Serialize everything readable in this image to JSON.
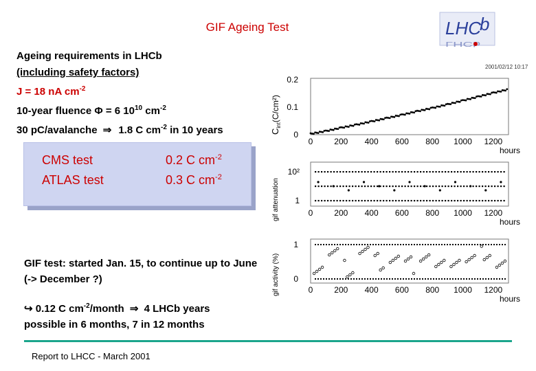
{
  "title": "GIF Ageing Test",
  "logo_text": "LHCb",
  "timestamp": "2001/02/12  10:17",
  "requirements": {
    "heading": "Ageing requirements in LHCb",
    "safety": "(including safety factors)",
    "current_lhs": "J = 18 nA cm",
    "current_exp": "-2",
    "fluence_lhs": "10-year fluence Φ = 6 10",
    "fluence_exp": "10",
    "fluence_unit": " cm",
    "fluence_unit_exp": "-2",
    "charge_a": "30 pC/avalanche",
    "charge_arrow": "⇒",
    "charge_b": "1.8 C cm",
    "charge_exp": "-2",
    "charge_c": " in 10 years"
  },
  "comparison": {
    "rows": [
      {
        "label": "CMS test",
        "value": "0.2 C cm",
        "exp": "-2"
      },
      {
        "label": "ATLAS test",
        "value": "0.3 C cm",
        "exp": "-2"
      }
    ]
  },
  "gif_status": "GIF test: started Jan. 15, to continue up to June (-> December ?)",
  "result": {
    "arrow": "↪",
    "rate": " 0.12 C cm",
    "rate_exp": "-2",
    "rate_unit": "/month",
    "arrow2": "⇒",
    "years": " 4 LHCb years",
    "line2": "possible in 6 months, 7 in 12 months"
  },
  "footer": "Report to LHCC - March 2001",
  "plots": {
    "x_ticks": [
      "0",
      "200",
      "400",
      "600",
      "800",
      "1000",
      "1200"
    ],
    "x_unit": "hours",
    "p1": {
      "ylabel_pre": "C",
      "ylabel_sub": "int",
      "ylabel_post": "(C/cm²)",
      "y_ticks": [
        "0",
        "0.1",
        "0.2"
      ]
    },
    "p2": {
      "ylabel": "gif attenuation",
      "y_ticks": [
        "1",
        "10²"
      ]
    },
    "p3": {
      "ylabel": "gif activity (%)",
      "y_ticks": [
        "0",
        "1"
      ]
    }
  },
  "chart_data": [
    {
      "type": "scatter",
      "xlabel": "hours",
      "ylabel": "C_int (C/cm²)",
      "xlim": [
        0,
        1300
      ],
      "ylim": [
        0,
        0.2
      ],
      "x": [
        0,
        100,
        200,
        300,
        400,
        500,
        600,
        700,
        800,
        900,
        1000,
        1100,
        1200,
        1300
      ],
      "y": [
        0.003,
        0.013,
        0.025,
        0.036,
        0.048,
        0.06,
        0.072,
        0.085,
        0.097,
        0.11,
        0.124,
        0.138,
        0.152,
        0.165
      ]
    },
    {
      "type": "scatter",
      "xlabel": "hours",
      "ylabel": "gif attenuation",
      "xlim": [
        0,
        1300
      ],
      "y_scale": "log",
      "ylim": [
        1,
        100
      ],
      "x": [
        50,
        150,
        250,
        350,
        450,
        550,
        650,
        750,
        850,
        950,
        1050,
        1150,
        1250
      ],
      "y": [
        1,
        100,
        1,
        10,
        1,
        100,
        1,
        10,
        1,
        100,
        10,
        1,
        10
      ]
    },
    {
      "type": "scatter",
      "xlabel": "hours",
      "ylabel": "gif activity (%)",
      "xlim": [
        0,
        1300
      ],
      "ylim": [
        0,
        1
      ],
      "x": [
        50,
        150,
        250,
        350,
        450,
        550,
        650,
        750,
        850,
        950,
        1050,
        1150,
        1250
      ],
      "y": [
        0.4,
        0.7,
        0.3,
        0.8,
        0.5,
        0.6,
        0.4,
        0.7,
        0.3,
        0.6,
        0.5,
        0.8,
        0.4
      ]
    }
  ]
}
